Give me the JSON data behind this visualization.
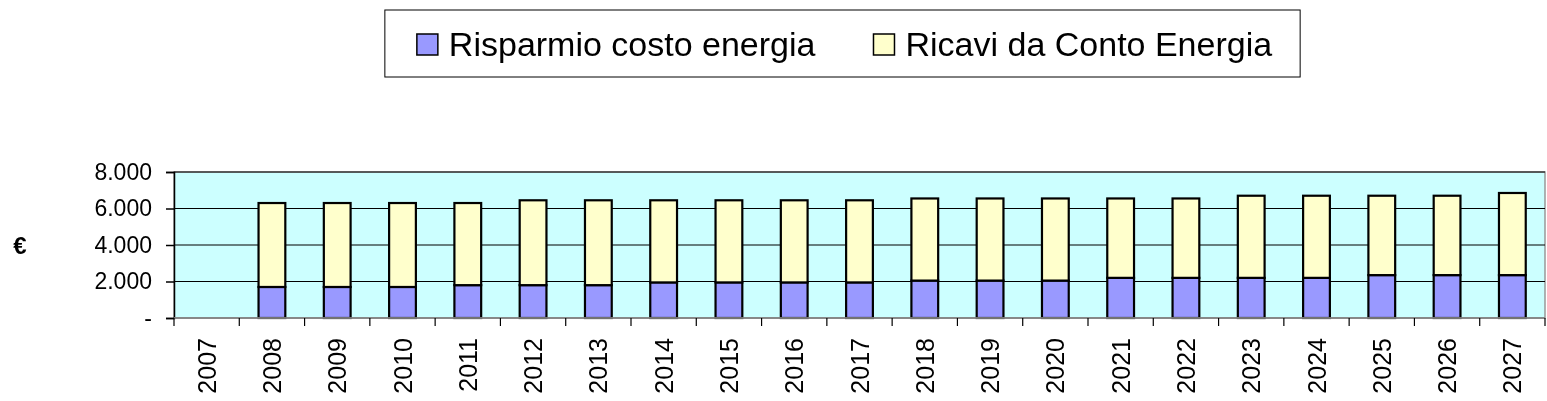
{
  "chart_data": {
    "type": "bar",
    "stacked": true,
    "ylabel": "€",
    "categories": [
      "2007",
      "2008",
      "2009",
      "2010",
      "2011",
      "2012",
      "2013",
      "2014",
      "2015",
      "2016",
      "2017",
      "2018",
      "2019",
      "2020",
      "2021",
      "2022",
      "2023",
      "2024",
      "2025",
      "2026",
      "2027"
    ],
    "series": [
      {
        "name": "Risparmio costo energia",
        "color": "#9999ff",
        "values": [
          null,
          1700,
          1700,
          1700,
          1800,
          1800,
          1800,
          1950,
          1950,
          1950,
          1950,
          2050,
          2050,
          2050,
          2200,
          2200,
          2200,
          2200,
          2350,
          2350,
          2350
        ]
      },
      {
        "name": "Ricavi da Conto Energia",
        "color": "#ffffcc",
        "values": [
          null,
          4600,
          4600,
          4600,
          4500,
          4650,
          4650,
          4500,
          4500,
          4500,
          4500,
          4500,
          4500,
          4500,
          4350,
          4350,
          4500,
          4500,
          4350,
          4350,
          4500
        ]
      }
    ],
    "ylim": [
      0,
      8000
    ],
    "yticks": [
      {
        "value": 0,
        "label": "-"
      },
      {
        "value": 2000,
        "label": "2.000"
      },
      {
        "value": 4000,
        "label": "4.000"
      },
      {
        "value": 6000,
        "label": "6.000"
      },
      {
        "value": 8000,
        "label": "8.000"
      }
    ],
    "grid": "y",
    "legend": "top"
  }
}
